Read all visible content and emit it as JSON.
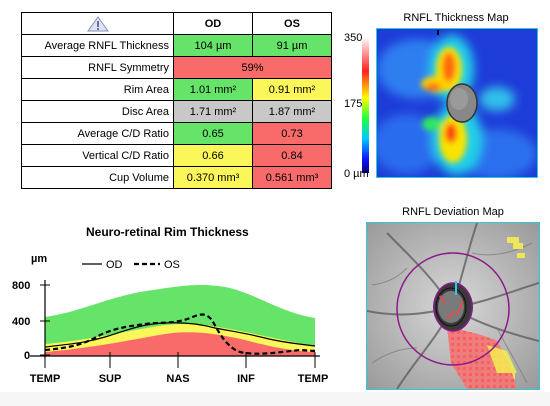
{
  "table": {
    "headers": {
      "od": "OD",
      "os": "OS"
    },
    "rows": [
      {
        "label": "Average RNFL Thickness",
        "od": "104 µm",
        "os": "91 µm",
        "od_color": "green",
        "os_color": "green"
      },
      {
        "label": "RNFL Symmetry",
        "combined": "59%",
        "color": "red"
      },
      {
        "label": "Rim Area",
        "od": "1.01 mm²",
        "os": "0.91 mm²",
        "od_color": "green",
        "os_color": "yellow"
      },
      {
        "label": "Disc Area",
        "od": "1.71 mm²",
        "os": "1.87 mm²",
        "od_color": "gray",
        "os_color": "gray"
      },
      {
        "label": "Average C/D Ratio",
        "od": "0.65",
        "os": "0.73",
        "od_color": "green",
        "os_color": "red"
      },
      {
        "label": "Vertical C/D Ratio",
        "od": "0.66",
        "os": "0.84",
        "od_color": "yellow",
        "os_color": "red"
      },
      {
        "label": "Cup Volume",
        "od": "0.370 mm³",
        "os": "0.561 mm³",
        "od_color": "yellow",
        "os_color": "red"
      }
    ]
  },
  "thickness_map": {
    "title": "RNFL Thickness Map",
    "scale_max": "350",
    "scale_mid": "175",
    "scale_min": "0 µm"
  },
  "rim_chart": {
    "title": "Neuro-retinal Rim Thickness",
    "unit": "µm",
    "legend_od": "OD",
    "legend_os": "OS",
    "y_ticks": [
      "800",
      "400",
      "0"
    ],
    "x_ticks": [
      "TEMP",
      "SUP",
      "NAS",
      "INF",
      "TEMP"
    ]
  },
  "deviation_map": {
    "title": "RNFL Deviation Map"
  },
  "colors": {
    "normal": "#66e46a",
    "borderline": "#fbf75a",
    "outside_normal": "#f96b6b",
    "neutral": "#c8c8c8",
    "frame": "#2fc8d8"
  }
}
